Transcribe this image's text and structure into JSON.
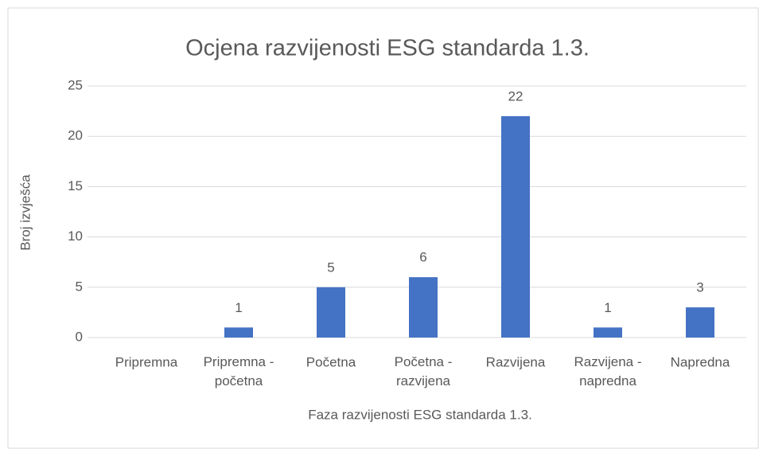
{
  "chart_data": {
    "type": "bar",
    "title": "Ocjena razvijenosti ESG standarda 1.3.",
    "x_label": "Faza razvijenosti ESG standarda 1.3.",
    "y_label": "Broj izvješća",
    "categories": [
      "Pripremna",
      "Pripremna - početna",
      "Početna",
      "Početna - razvijena",
      "Razvijena",
      "Razvijena - napredna",
      "Napredna"
    ],
    "values": [
      0,
      1,
      5,
      6,
      22,
      1,
      3
    ],
    "value_labels": [
      null,
      "1",
      "5",
      "6",
      "22",
      "1",
      "3"
    ],
    "color": "#4472c4",
    "ylim": [
      0,
      25
    ],
    "yticks": [
      0,
      5,
      10,
      15,
      20,
      25
    ],
    "grid": true
  }
}
